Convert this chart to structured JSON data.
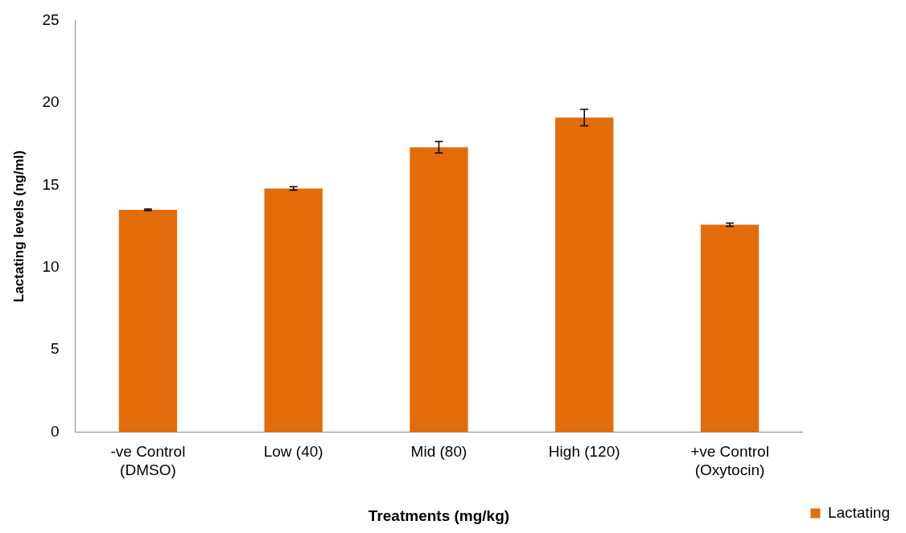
{
  "chart_data": {
    "type": "bar",
    "xlabel": "Treatments (mg/kg)",
    "ylabel": "Lactating levels (ng/ml)",
    "categories": [
      "-ve Control (DMSO)",
      "Low (40)",
      "Mid (80)",
      "High (120)",
      "+ve Control (Oxytocin)"
    ],
    "series": [
      {
        "name": "Lactating",
        "color": "#e36c0a",
        "values": [
          13.5,
          14.8,
          17.3,
          19.1,
          12.6
        ],
        "errors": [
          0.05,
          0.1,
          0.35,
          0.5,
          0.1
        ]
      }
    ],
    "ylim": [
      0,
      25
    ],
    "yticks": [
      0,
      5,
      10,
      15,
      20,
      25
    ],
    "grid": false,
    "legend": "bottom right"
  }
}
